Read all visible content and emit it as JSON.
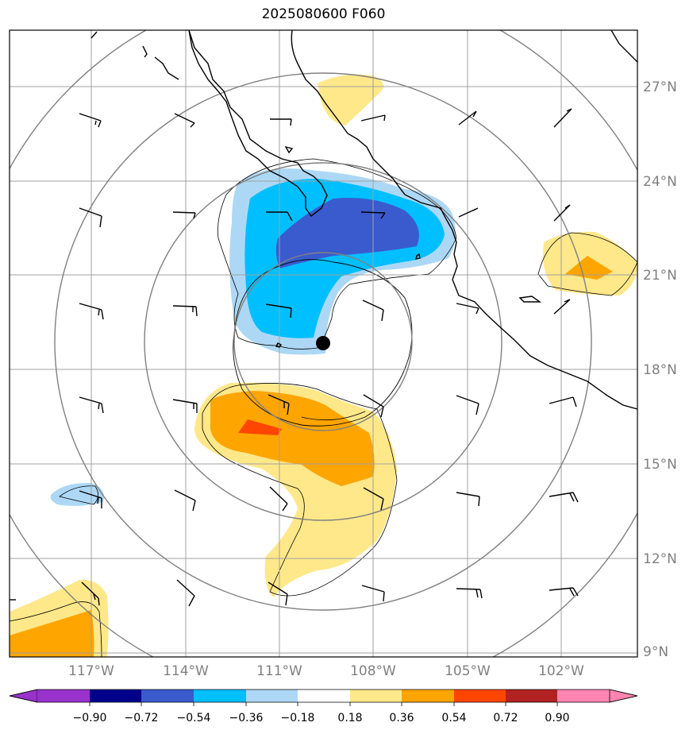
{
  "title": "2025080600 F060",
  "map": {
    "lat_labels": [
      "27°N",
      "24°N",
      "21°N",
      "18°N",
      "15°N",
      "12°N",
      "9°N"
    ],
    "lon_labels": [
      "117°W",
      "114°W",
      "111°W",
      "108°W",
      "105°W",
      "102°W"
    ],
    "storm_center": {
      "lat": 18.8,
      "lon": -109.4
    },
    "colors": {
      "grid": "#a0a0a0",
      "range_rings": "#808080",
      "coast": "#000000",
      "storm_center": "#000000"
    }
  },
  "colorbar": {
    "labels": [
      "−0.90",
      "−0.72",
      "−0.54",
      "−0.36",
      "−0.18",
      "0.18",
      "0.36",
      "0.54",
      "0.72",
      "0.90"
    ],
    "colors": [
      "#9932cc",
      "#00008b",
      "#3a5bcd",
      "#00bfff",
      "#add8f5",
      "#ffffff",
      "#ffe88a",
      "#ffa500",
      "#ff4500",
      "#b22222",
      "#ff85b0"
    ]
  }
}
